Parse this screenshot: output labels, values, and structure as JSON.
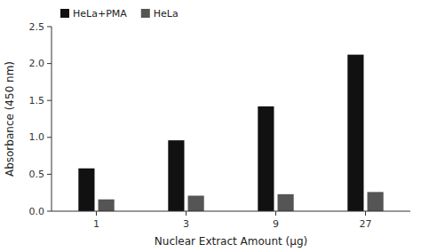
{
  "chart_data": {
    "type": "bar",
    "xlabel": "Nuclear Extract Amount (μg)",
    "ylabel": "Absorbance (450 nm)",
    "categories": [
      "1",
      "3",
      "9",
      "27"
    ],
    "series": [
      {
        "name": "HeLa+PMA",
        "color": "#111111",
        "values": [
          0.58,
          0.96,
          1.42,
          2.12
        ]
      },
      {
        "name": "HeLa",
        "color": "#555555",
        "values": [
          0.16,
          0.21,
          0.23,
          0.26
        ]
      }
    ],
    "ylim": [
      0.0,
      2.5
    ],
    "yticks": [
      {
        "value": 0.0,
        "label": "0.0"
      },
      0.5,
      {
        "value": 1.0,
        "label": "1.0"
      },
      1.5,
      {
        "value": 2.0,
        "label": "2.0"
      },
      2.5
    ],
    "legend": "upper left",
    "grid": false
  }
}
